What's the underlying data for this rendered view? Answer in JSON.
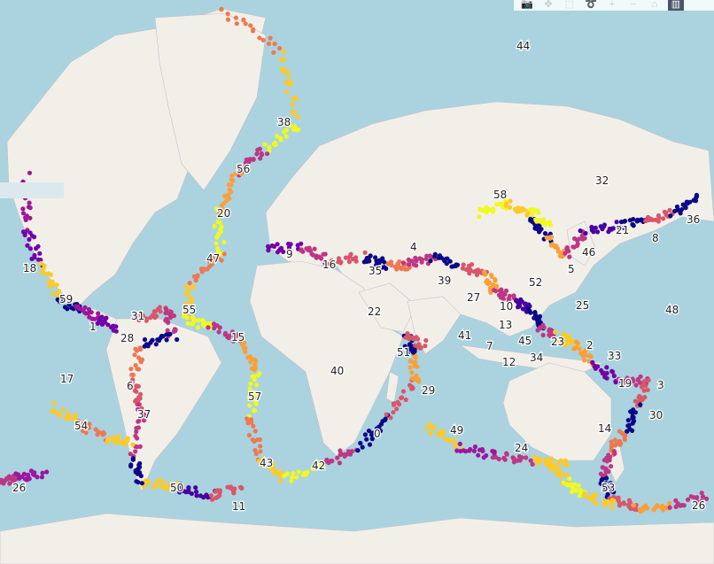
{
  "modebar": {
    "buttons": [
      {
        "name": "camera-icon",
        "glyph": "📷"
      },
      {
        "name": "pan-icon",
        "glyph": "✥"
      },
      {
        "name": "box-select-icon",
        "glyph": "⬚"
      },
      {
        "name": "lasso-icon",
        "glyph": "➰"
      },
      {
        "name": "zoom-in-icon",
        "glyph": "+"
      },
      {
        "name": "zoom-out-icon",
        "glyph": "−"
      },
      {
        "name": "reset-home-icon",
        "glyph": "⌂"
      },
      {
        "name": "plotly-logo-icon",
        "glyph": "▥"
      }
    ]
  },
  "colors": {
    "ocean": "#aad3df",
    "land": "#f2efe9",
    "border": "#c6bfc9",
    "cluster_palette": [
      "#0d0887",
      "#46039f",
      "#7201a8",
      "#9c179e",
      "#bd3786",
      "#d8576b",
      "#ed7953",
      "#fb9f3a",
      "#fdca26",
      "#f0f921"
    ]
  },
  "chart_data": {
    "type": "scatter",
    "map_type": "world earthquake cluster map",
    "cluster_labels": [
      "0",
      "1",
      "2",
      "3",
      "4",
      "5",
      "6",
      "8",
      "9",
      "10",
      "11",
      "12",
      "13",
      "14",
      "15",
      "16",
      "17",
      "18",
      "19",
      "20",
      "21",
      "22",
      "23",
      "24",
      "25",
      "26",
      "26",
      "27",
      "28",
      "29",
      "30",
      "31",
      "32",
      "33",
      "34",
      "35",
      "36",
      "37",
      "38",
      "39",
      "40",
      "41",
      "42",
      "43",
      "44",
      "45",
      "46",
      "47",
      "48",
      "49",
      "50",
      "51",
      "52",
      "53",
      "54",
      "55",
      "56",
      "57",
      "58",
      "59",
      "7"
    ]
  }
}
